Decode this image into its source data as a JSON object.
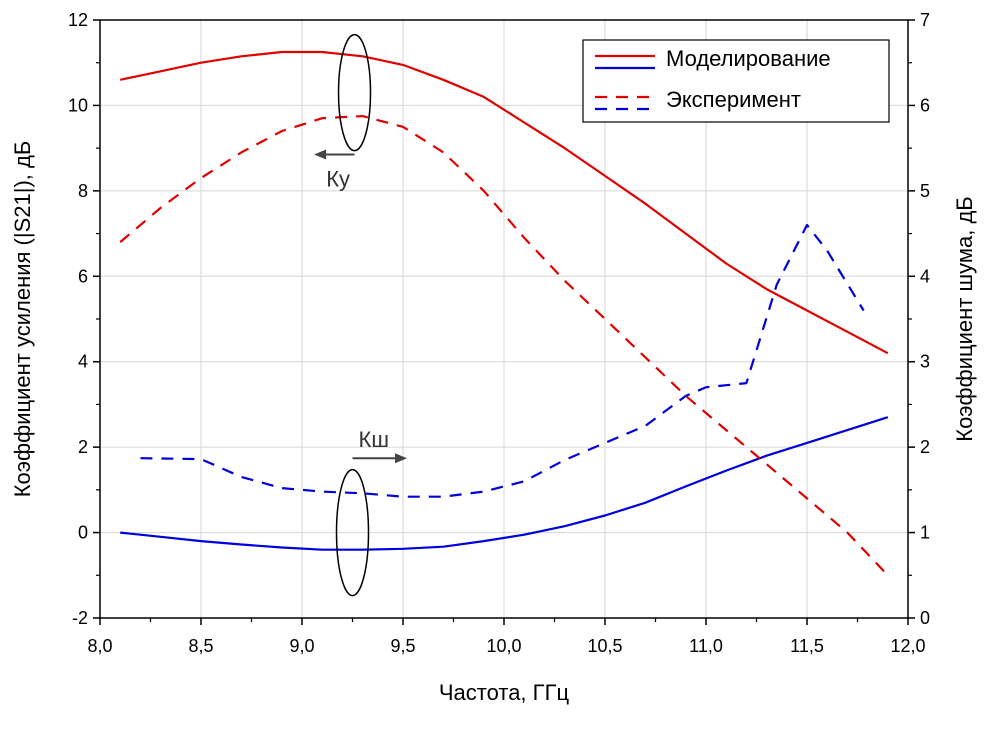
{
  "chart_data": {
    "type": "line",
    "xlabel": "Частота, ГГц",
    "ylabel_left": "Коэффициент усиления (|S21|), дБ",
    "ylabel_right": "Коэффициент шума, дБ",
    "xlim": [
      8.0,
      12.0
    ],
    "ylim_left": [
      -2,
      12
    ],
    "ylim_right": [
      0,
      7
    ],
    "x_ticks": [
      8.0,
      8.5,
      9.0,
      9.5,
      10.0,
      10.5,
      11.0,
      11.5,
      12.0
    ],
    "x_tick_labels": [
      "8,0",
      "8,5",
      "9,0",
      "9,5",
      "10,0",
      "10,5",
      "11,0",
      "11,5",
      "12,0"
    ],
    "y_left_ticks": [
      -2,
      0,
      2,
      4,
      6,
      8,
      10,
      12
    ],
    "y_left_tick_labels": [
      "-2",
      "0",
      "2",
      "4",
      "6",
      "8",
      "10",
      "12"
    ],
    "y_right_ticks": [
      0,
      1,
      2,
      3,
      4,
      5,
      6,
      7
    ],
    "y_right_tick_labels": [
      "0",
      "1",
      "2",
      "3",
      "4",
      "5",
      "6",
      "7"
    ],
    "grid": true,
    "legend_position": "top-right",
    "legend": [
      {
        "label": "Моделирование",
        "color": "#e00000",
        "dash": "solid"
      },
      {
        "label": "",
        "color": "#0000dd",
        "dash": "solid"
      },
      {
        "label": "Эксперимент",
        "color": "#e00000",
        "dash": "dashed"
      },
      {
        "label": "",
        "color": "#0000dd",
        "dash": "dashed"
      }
    ],
    "series": [
      {
        "axis": "left",
        "color": "#e00000",
        "dash": "solid",
        "x": [
          8.1,
          8.3,
          8.5,
          8.7,
          8.9,
          9.1,
          9.3,
          9.5,
          9.7,
          9.9,
          10.1,
          10.3,
          10.5,
          10.7,
          10.9,
          11.1,
          11.3,
          11.5,
          11.7,
          11.9
        ],
        "y": [
          10.6,
          10.8,
          11.0,
          11.15,
          11.25,
          11.25,
          11.15,
          10.95,
          10.6,
          10.2,
          9.6,
          9.0,
          8.35,
          7.7,
          7.0,
          6.3,
          5.7,
          5.2,
          4.7,
          4.2
        ]
      },
      {
        "axis": "left",
        "color": "#0000dd",
        "dash": "solid",
        "x": [
          8.1,
          8.3,
          8.5,
          8.7,
          8.9,
          9.1,
          9.3,
          9.5,
          9.7,
          9.9,
          10.1,
          10.3,
          10.5,
          10.7,
          10.9,
          11.1,
          11.3,
          11.5,
          11.7,
          11.9
        ],
        "y": [
          0.0,
          -0.1,
          -0.2,
          -0.28,
          -0.35,
          -0.4,
          -0.4,
          -0.38,
          -0.33,
          -0.2,
          -0.05,
          0.15,
          0.4,
          0.7,
          1.08,
          1.45,
          1.8,
          2.1,
          2.4,
          2.7
        ]
      },
      {
        "axis": "left",
        "color": "#e00000",
        "dash": "dashed",
        "x": [
          8.1,
          8.3,
          8.5,
          8.7,
          8.9,
          9.1,
          9.3,
          9.5,
          9.7,
          9.9,
          10.1,
          10.3,
          10.5,
          10.7,
          10.9,
          11.1,
          11.3,
          11.5,
          11.7,
          11.9
        ],
        "y": [
          6.8,
          7.6,
          8.3,
          8.9,
          9.4,
          9.7,
          9.75,
          9.5,
          8.9,
          8.0,
          6.9,
          5.9,
          5.0,
          4.1,
          3.2,
          2.4,
          1.6,
          0.8,
          0.0,
          -1.0
        ]
      },
      {
        "axis": "right",
        "color": "#0000dd",
        "dash": "dashed",
        "x": [
          8.2,
          8.5,
          8.7,
          8.9,
          9.1,
          9.3,
          9.5,
          9.7,
          9.9,
          10.1,
          10.3,
          10.5,
          10.7,
          10.9,
          11.0,
          11.2,
          11.35,
          11.5,
          11.6,
          11.78
        ],
        "y": [
          1.87,
          1.86,
          1.65,
          1.52,
          1.48,
          1.46,
          1.42,
          1.42,
          1.48,
          1.6,
          1.85,
          2.05,
          2.25,
          2.6,
          2.7,
          2.75,
          3.9,
          4.6,
          4.3,
          3.6
        ]
      }
    ],
    "annotations": [
      {
        "text": "Ку",
        "arrow": "left",
        "axis": "left"
      },
      {
        "text": "Кш",
        "arrow": "right",
        "axis": "right"
      }
    ]
  }
}
